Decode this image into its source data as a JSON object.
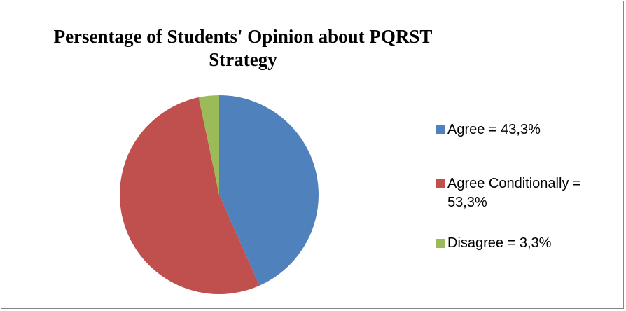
{
  "chart_data": {
    "type": "pie",
    "title": "Persentage of Students' Opinion about PQRST Strategy",
    "categories": [
      "Agree",
      "Agree Conditionally",
      "Disagree"
    ],
    "values": [
      43.3,
      53.3,
      3.3
    ],
    "colors": [
      "#4F81BD",
      "#C0504D",
      "#9BBB59"
    ],
    "legend_position": "right",
    "legend": [
      {
        "label": "Agree = 43,3%",
        "color": "#4F81BD"
      },
      {
        "label": "Agree Conditionally = 53,3%",
        "color": "#C0504D"
      },
      {
        "label": "Disagree = 3,3%",
        "color": "#9BBB59"
      }
    ]
  }
}
